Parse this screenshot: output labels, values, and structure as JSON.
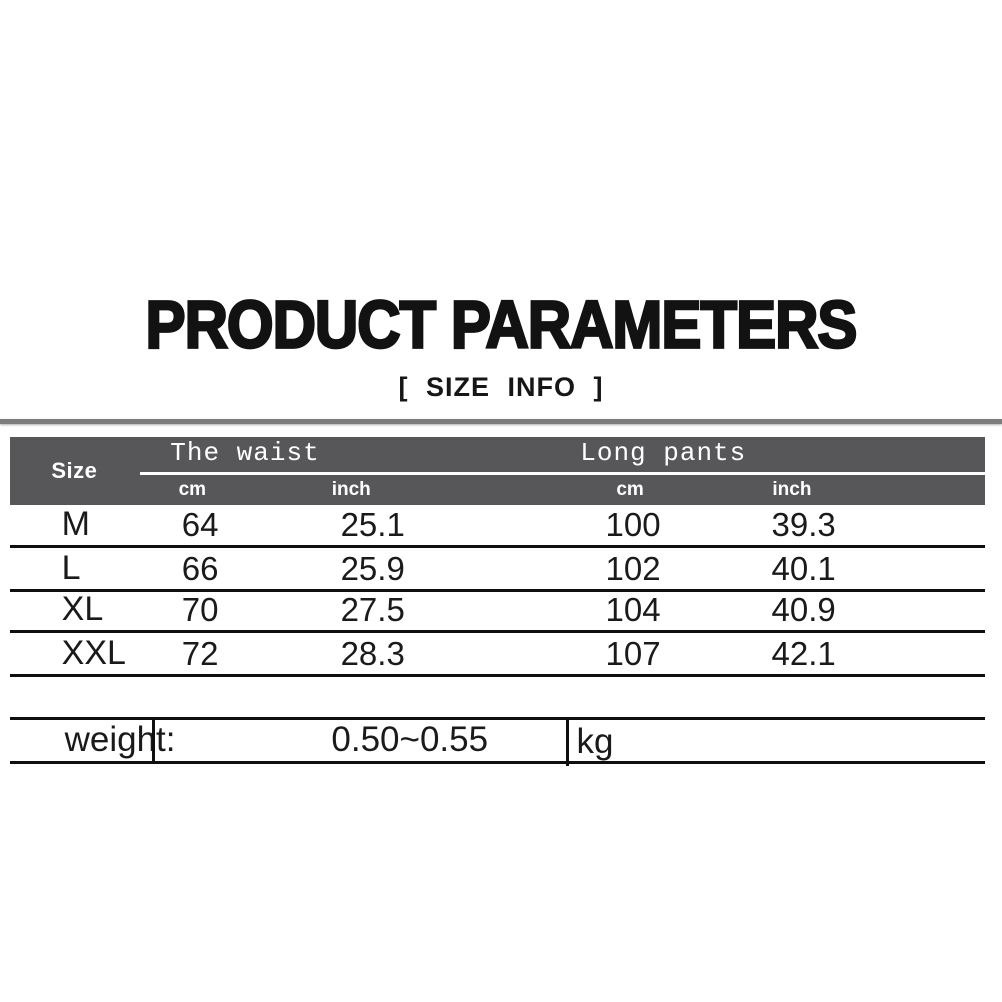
{
  "page": {
    "title": "PRODUCT PARAMETERS",
    "subtitle": "[ SIZE INFO ]"
  },
  "table": {
    "header": {
      "size_label": "Size",
      "groups": [
        {
          "label": "The waist",
          "sub": [
            "cm",
            "inch"
          ]
        },
        {
          "label": "Long pants",
          "sub": [
            "cm",
            "inch"
          ]
        }
      ]
    },
    "rows": [
      {
        "size": "M",
        "waist_cm": "64",
        "waist_inch": "25.1",
        "pants_cm": "100",
        "pants_inch": "39.3"
      },
      {
        "size": "L",
        "waist_cm": "66",
        "waist_inch": "25.9",
        "pants_cm": "102",
        "pants_inch": "40.1"
      },
      {
        "size": "XL",
        "waist_cm": "70",
        "waist_inch": "27.5",
        "pants_cm": "104",
        "pants_inch": "40.9"
      },
      {
        "size": "XXL",
        "waist_cm": "72",
        "waist_inch": "28.3",
        "pants_cm": "107",
        "pants_inch": "42.1"
      }
    ],
    "footer": {
      "label": "weight:",
      "value": "0.50~0.55",
      "unit": "kg"
    }
  },
  "colors": {
    "header_bg": "#57575a",
    "row_line": "#0f0f0f",
    "top_rule_gray": "#7c7c7c",
    "header_text": "#ffffff",
    "body_text": "#1a1a1a"
  }
}
